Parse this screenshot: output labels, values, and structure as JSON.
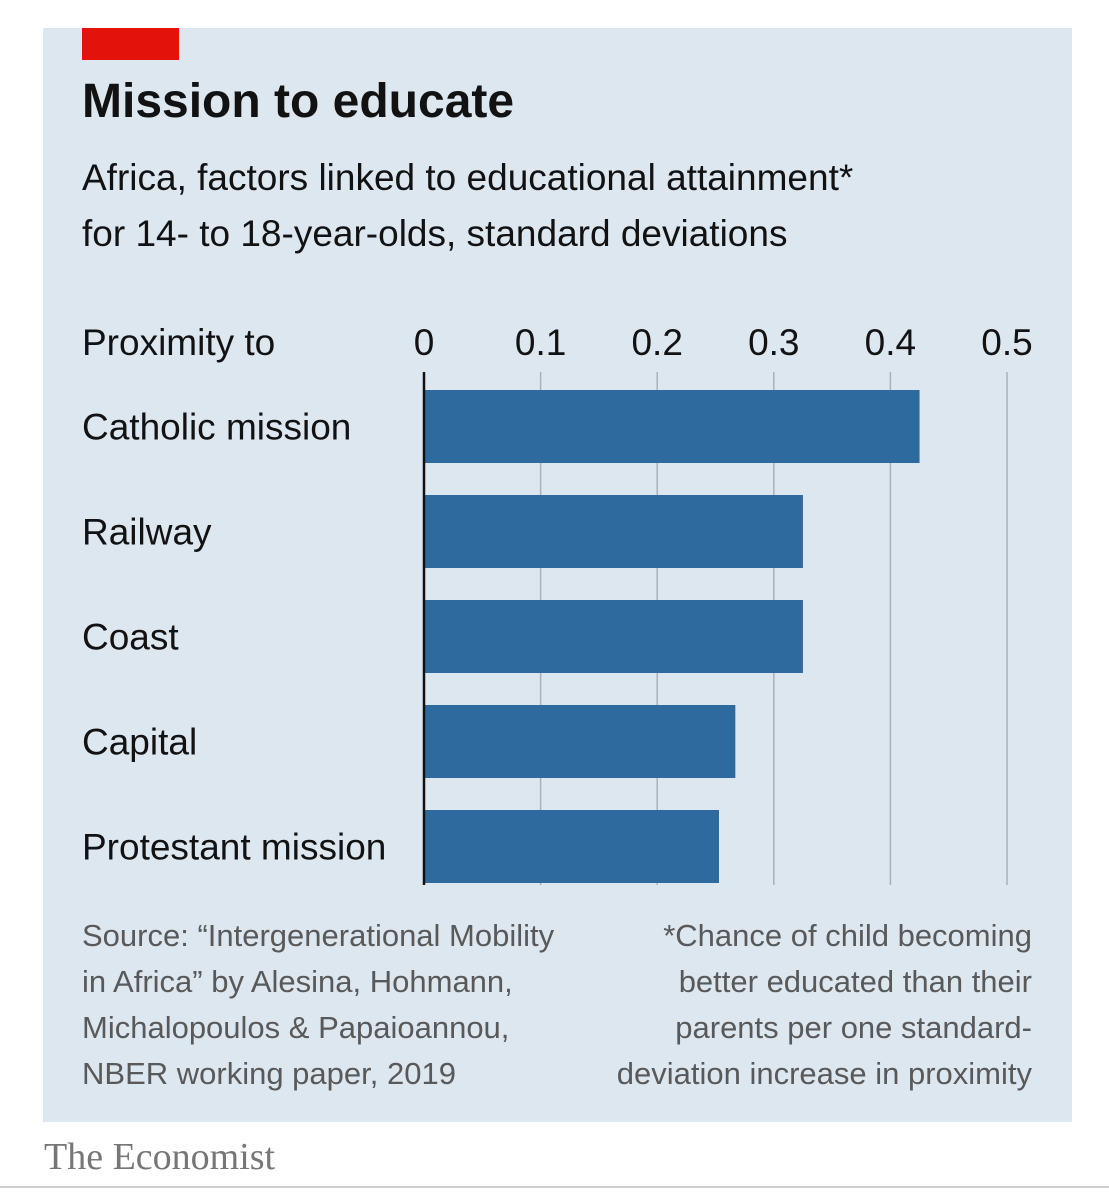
{
  "title": "Mission to educate",
  "subtitle_lines": [
    "Africa, factors linked to educational attainment*",
    "for 14- to 18-year-olds, standard deviations"
  ],
  "colors": {
    "accent": "#e3120b",
    "bar": "#2e6a9e",
    "background": "#dde7ef"
  },
  "chart_data": {
    "type": "bar",
    "orientation": "horizontal",
    "category_header": "Proximity to",
    "categories": [
      "Catholic mission",
      "Railway",
      "Coast",
      "Capital",
      "Protestant mission"
    ],
    "values": [
      0.425,
      0.325,
      0.325,
      0.267,
      0.253
    ],
    "xlim": [
      0,
      0.5
    ],
    "xticks": [
      0,
      0.1,
      0.2,
      0.3,
      0.4,
      0.5
    ],
    "xtick_labels": [
      "0",
      "0.1",
      "0.2",
      "0.3",
      "0.4",
      "0.5"
    ],
    "grid": true,
    "axis_position": "top"
  },
  "source_lines": [
    "Source: “Intergenerational Mobility",
    "in Africa” by Alesina, Hohmann,",
    "Michalopoulos & Papaioannou,",
    "NBER working paper, 2019"
  ],
  "footnote_lines": [
    "*Chance of child becoming",
    "better educated than their",
    "parents per one standard-",
    "deviation increase in proximity"
  ],
  "brand": "The Economist"
}
